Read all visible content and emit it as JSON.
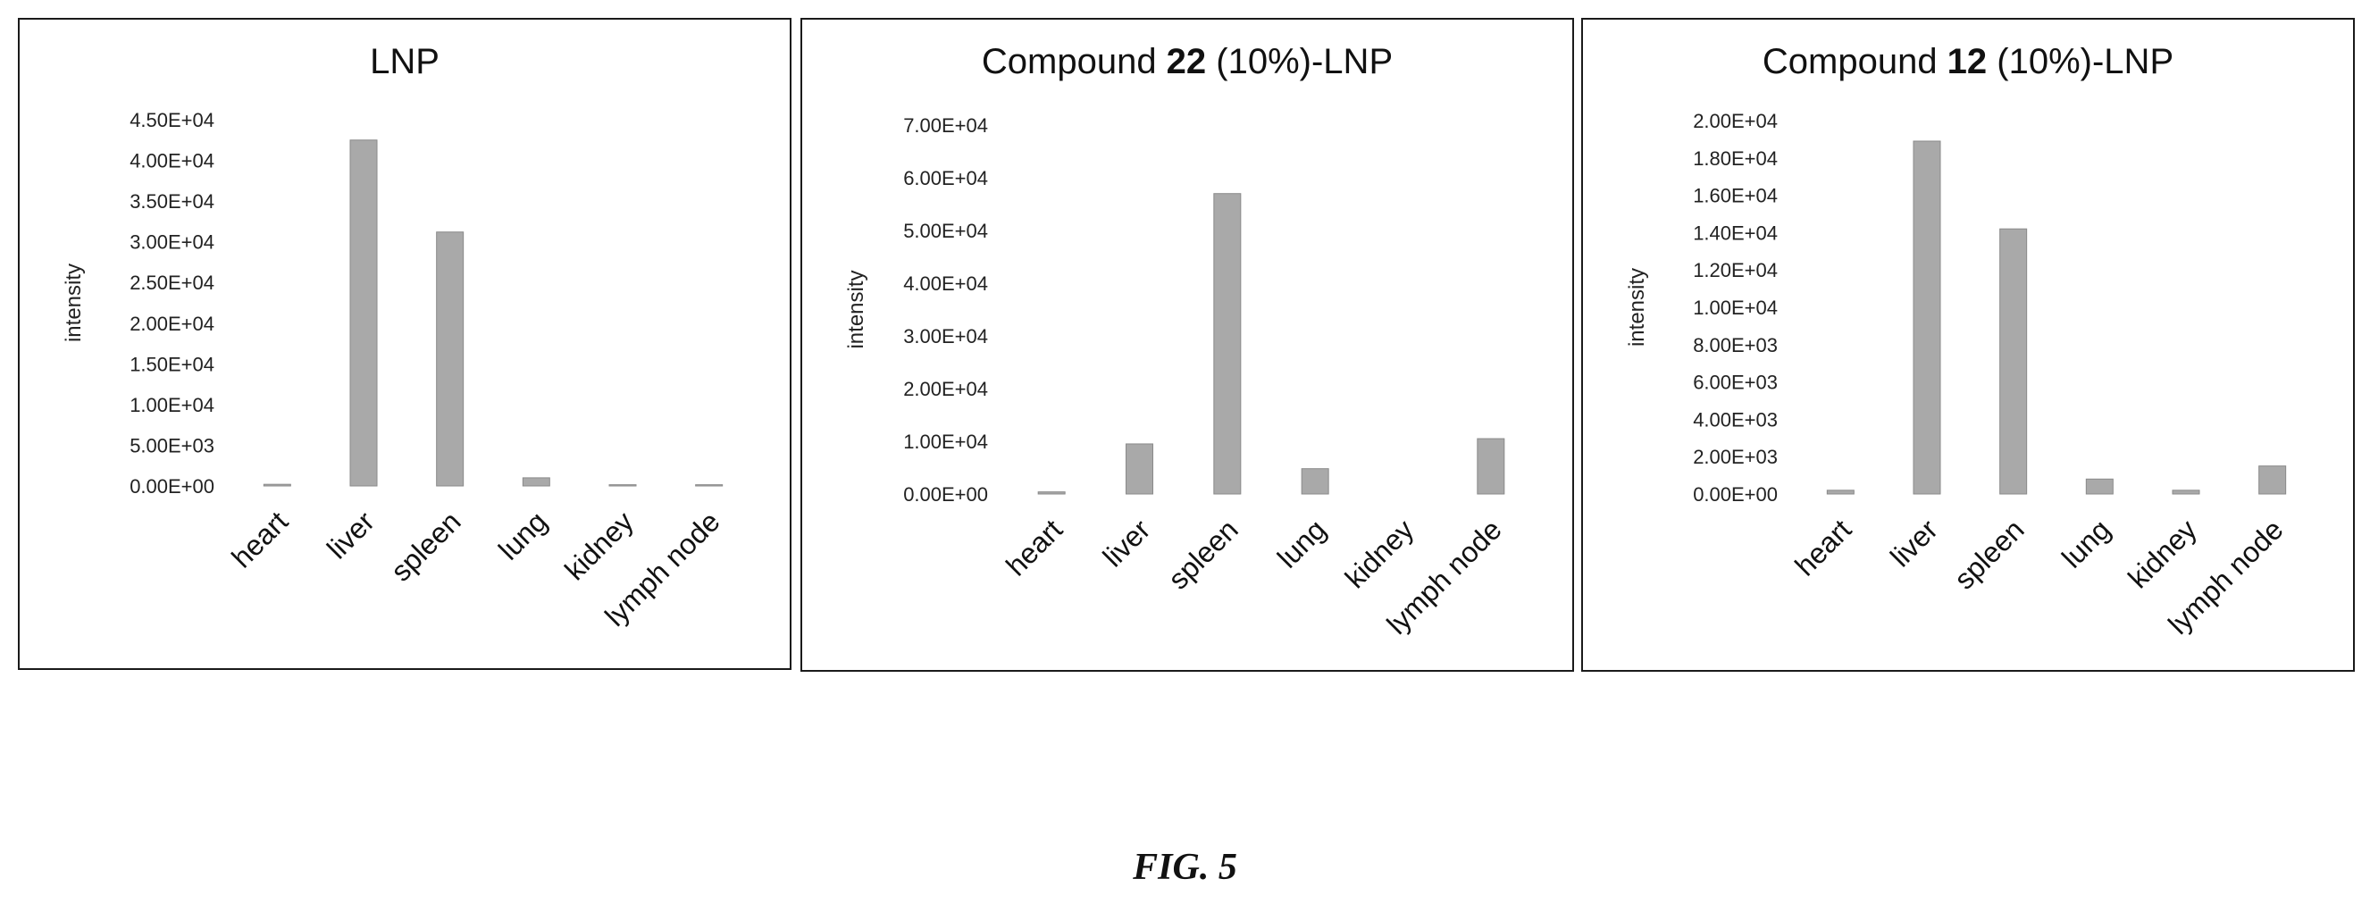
{
  "figure": {
    "caption": "FIG. 5"
  },
  "chart_data": [
    {
      "type": "bar",
      "title_parts": [
        "LNP"
      ],
      "ylabel": "intensity",
      "categories": [
        "heart",
        "liver",
        "spleen",
        "lung",
        "kidney",
        "lymph node"
      ],
      "values": [
        200,
        42500,
        31200,
        1000,
        150,
        150
      ],
      "ylim": [
        0,
        45000
      ],
      "ytick_labels": [
        "0.00E+00",
        "5.00E+03",
        "1.00E+04",
        "1.50E+04",
        "2.00E+04",
        "2.50E+04",
        "3.00E+04",
        "3.50E+04",
        "4.00E+04",
        "4.50E+04"
      ],
      "grid": false,
      "bar_color": "#a9a9a9"
    },
    {
      "type": "bar",
      "title_parts": [
        "Compound ",
        "22",
        " (10%)-LNP"
      ],
      "ylabel": "intensity",
      "categories": [
        "heart",
        "liver",
        "spleen",
        "lung",
        "kidney",
        "lymph node"
      ],
      "values": [
        400,
        9500,
        57000,
        4800,
        0,
        10500
      ],
      "ylim": [
        0,
        70000
      ],
      "ytick_labels": [
        "0.00E+00",
        "1.00E+04",
        "2.00E+04",
        "3.00E+04",
        "4.00E+04",
        "5.00E+04",
        "6.00E+04",
        "7.00E+04"
      ],
      "grid": false,
      "bar_color": "#a9a9a9"
    },
    {
      "type": "bar",
      "title_parts": [
        "Compound ",
        "12",
        " (10%)-LNP"
      ],
      "ylabel": "intensity",
      "categories": [
        "heart",
        "liver",
        "spleen",
        "lung",
        "kidney",
        "lymph node"
      ],
      "values": [
        200,
        18900,
        14200,
        800,
        200,
        1500
      ],
      "ylim": [
        0,
        20000
      ],
      "ytick_labels": [
        "0.00E+00",
        "2.00E+03",
        "4.00E+03",
        "6.00E+03",
        "8.00E+03",
        "1.00E+04",
        "1.20E+04",
        "1.40E+04",
        "1.60E+04",
        "1.80E+04",
        "2.00E+04"
      ],
      "grid": false,
      "bar_color": "#a9a9a9"
    }
  ]
}
